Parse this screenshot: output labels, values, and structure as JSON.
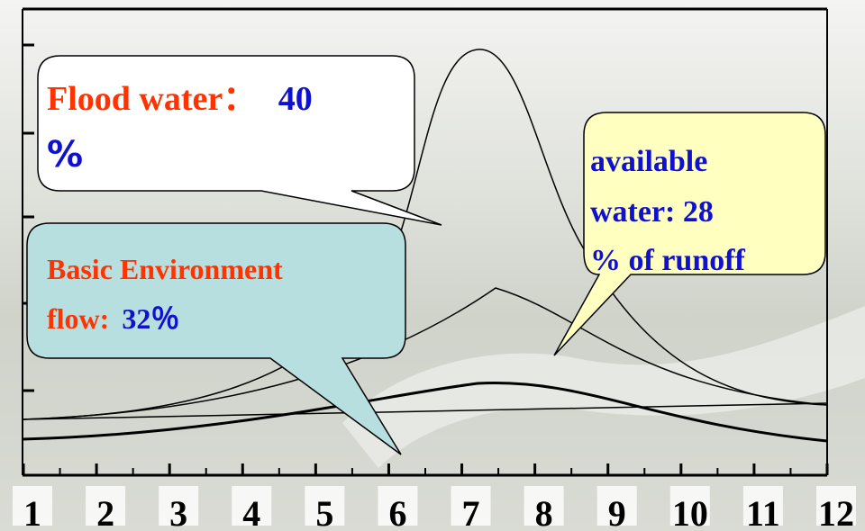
{
  "axis": {
    "labels": [
      "1",
      "2",
      "3",
      "4",
      "5",
      "6",
      "7",
      "8",
      "9",
      "10",
      "11",
      "12"
    ]
  },
  "callouts": [
    {
      "label": "Flood water：",
      "value": "40",
      "unit": "%"
    },
    {
      "lines": [
        "available",
        "water: 28",
        "% of runoff"
      ]
    },
    {
      "lines": [
        "Basic Environment",
        "flow:"
      ],
      "value": "32％"
    }
  ]
}
